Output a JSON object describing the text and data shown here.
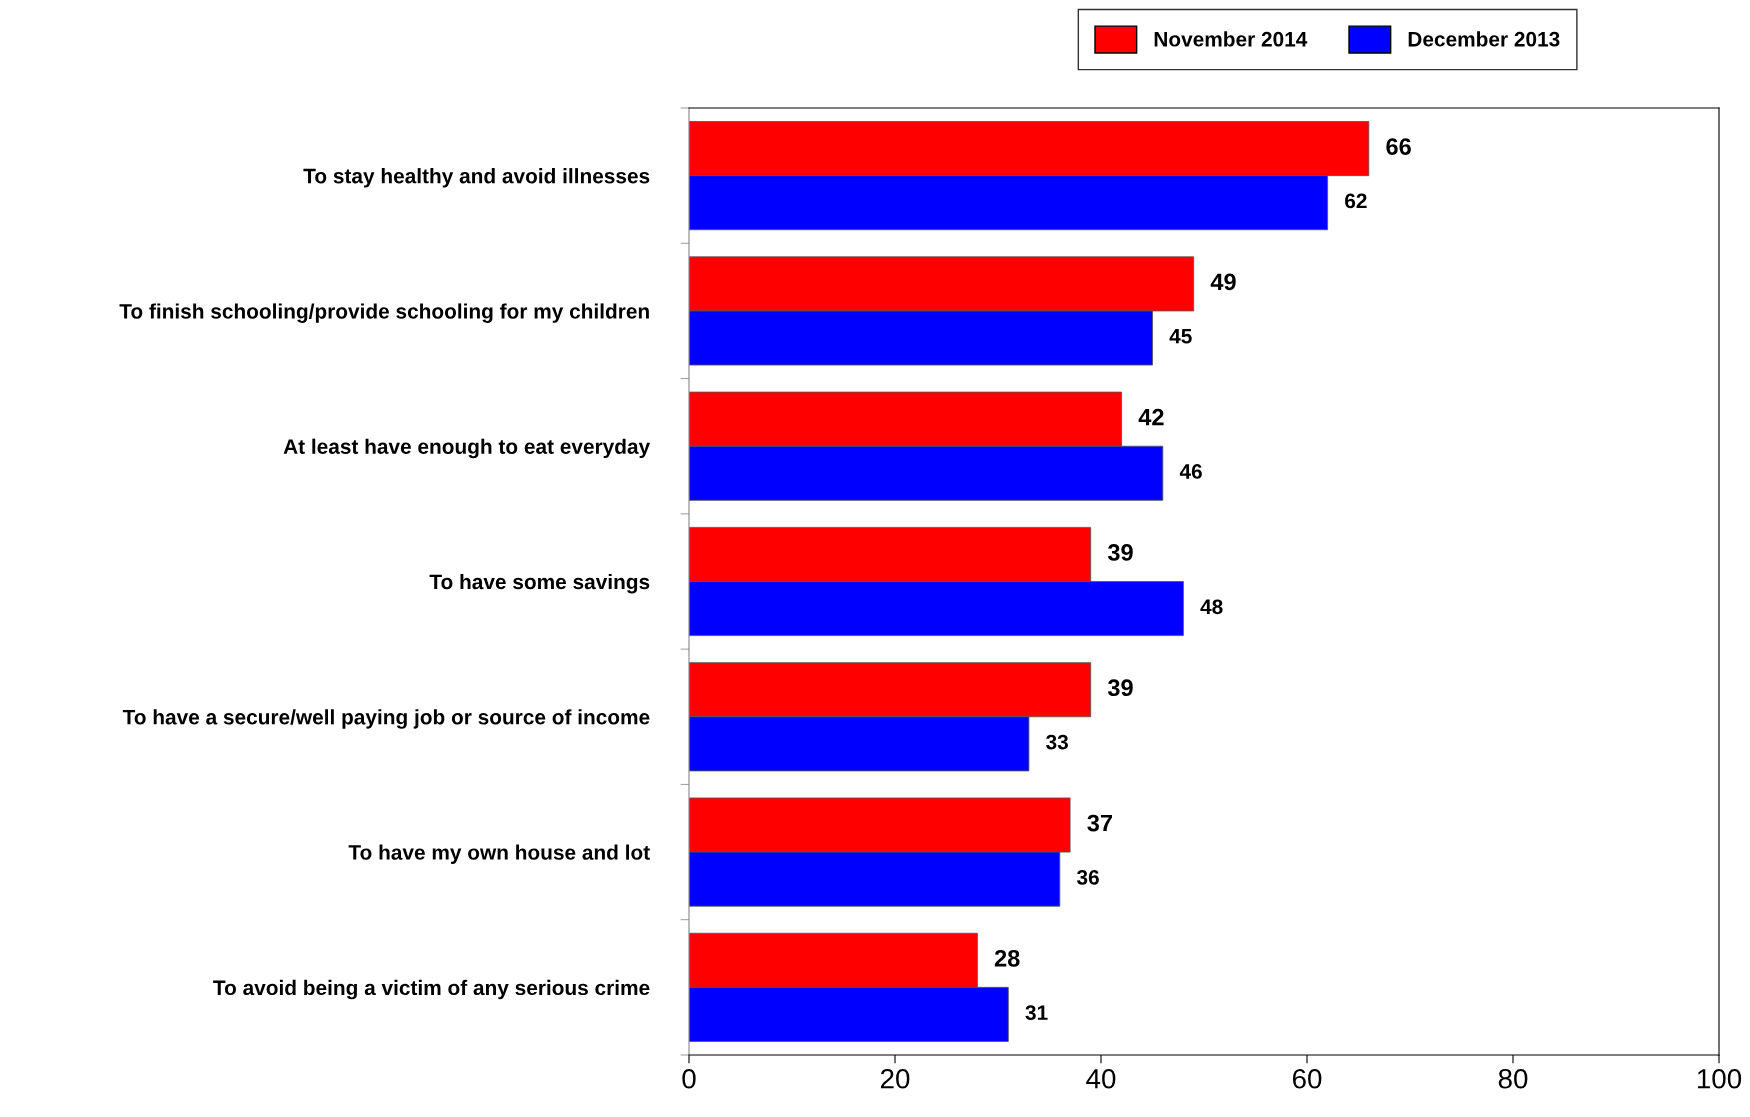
{
  "chart_data": {
    "type": "bar",
    "orientation": "horizontal",
    "categories": [
      "To stay healthy and avoid illnesses",
      "To finish schooling/provide schooling for my children",
      "At least have enough to eat everyday",
      "To have some savings",
      "To have a secure/well paying job or source of income",
      "To have my own house and lot",
      "To avoid being a victim of any serious crime"
    ],
    "series": [
      {
        "name": "November 2014",
        "color": "#ff0000",
        "values": [
          66,
          49,
          42,
          39,
          39,
          37,
          28
        ]
      },
      {
        "name": "December 2013",
        "color": "#0000ff",
        "values": [
          62,
          45,
          46,
          48,
          33,
          36,
          31
        ]
      }
    ],
    "xlim": [
      0,
      100
    ],
    "xticks": [
      0,
      20,
      40,
      60,
      80,
      100
    ],
    "data_labels": true,
    "legend": "top",
    "grid": false
  }
}
